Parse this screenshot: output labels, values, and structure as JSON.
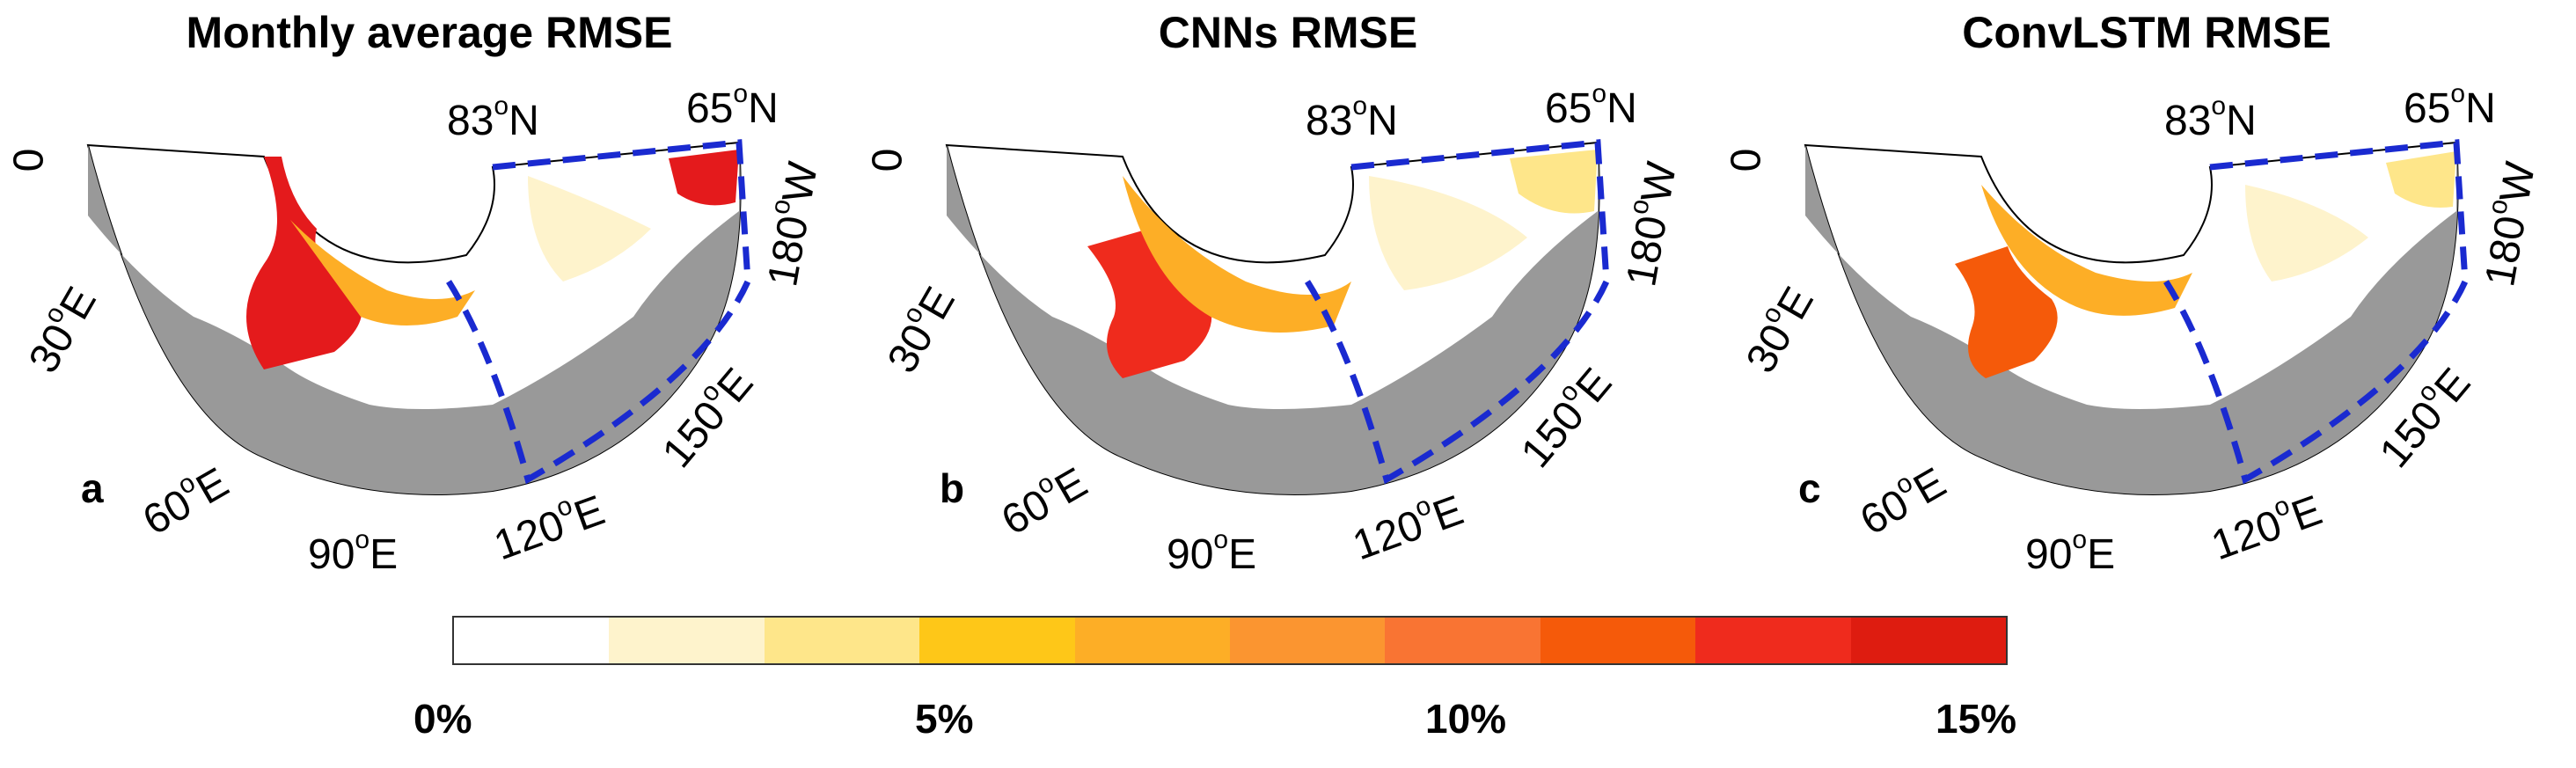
{
  "panels": [
    {
      "title": "Monthly average RMSE",
      "letter": "a"
    },
    {
      "title": "CNNs RMSE",
      "letter": "b"
    },
    {
      "title": "ConvLSTM RMSE",
      "letter": "c"
    }
  ],
  "axis_labels": {
    "lon0": "0",
    "lon30": "30",
    "lon60": "60",
    "lon90": "90",
    "lon120": "120",
    "lon150": "150",
    "lon180": "180",
    "lat83": "83",
    "lat65": "65",
    "deg": "o",
    "east": "E",
    "west": "W",
    "north": "N"
  },
  "colorbar": {
    "colors": [
      "#ffffff",
      "#fef3cc",
      "#fee68a",
      "#fec718",
      "#fdae26",
      "#fb9530",
      "#f97433",
      "#f55a0a",
      "#ef2b1d",
      "#de1c10"
    ],
    "ticks": [
      "0%",
      "5%",
      "10%",
      "15%"
    ],
    "range": [
      0,
      15
    ]
  },
  "palette": {
    "land": "#999999",
    "boundary": "#1a2ad0",
    "ice_high": "#e41a1c"
  }
}
